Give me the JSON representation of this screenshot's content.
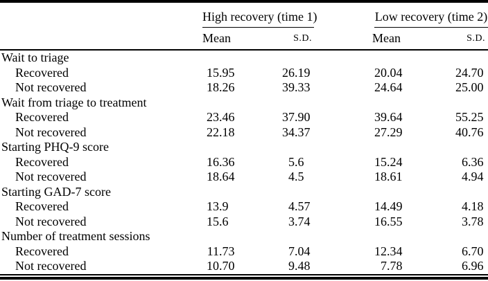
{
  "colors": {
    "rule": "#000000",
    "text": "#000000",
    "background": "#ffffff"
  },
  "table": {
    "col_groups": [
      {
        "label": "High recovery (time 1)"
      },
      {
        "label": "Low recovery (time 2)"
      }
    ],
    "sub_headers": {
      "mean": "Mean",
      "sd": "S.D."
    },
    "sections": [
      {
        "label": "Wait to triage",
        "rows": [
          {
            "label": "Recovered",
            "values": [
              "15.95",
              "26.19",
              "20.04",
              "24.70"
            ]
          },
          {
            "label": "Not recovered",
            "values": [
              "18.26",
              "39.33",
              "24.64",
              "25.00"
            ]
          }
        ]
      },
      {
        "label": "Wait from triage to treatment",
        "rows": [
          {
            "label": "Recovered",
            "values": [
              "23.46",
              "37.90",
              "39.64",
              "55.25"
            ]
          },
          {
            "label": "Not recovered",
            "values": [
              "22.18",
              "34.37",
              "27.29",
              "40.76"
            ]
          }
        ]
      },
      {
        "label": "Starting PHQ-9 score",
        "rows": [
          {
            "label": "Recovered",
            "values": [
              "16.36",
              "5.6",
              "15.24",
              "6.36"
            ]
          },
          {
            "label": "Not recovered",
            "values": [
              "18.64",
              "4.5",
              "18.61",
              "4.94"
            ]
          }
        ]
      },
      {
        "label": "Starting GAD-7 score",
        "rows": [
          {
            "label": "Recovered",
            "values": [
              "13.9",
              "4.57",
              "14.49",
              "4.18"
            ]
          },
          {
            "label": "Not recovered",
            "values": [
              "15.6",
              "3.74",
              "16.55",
              "3.78"
            ]
          }
        ]
      },
      {
        "label": "Number of treatment sessions",
        "rows": [
          {
            "label": "Recovered",
            "values": [
              "11.73",
              "7.04",
              "12.34",
              "6.70"
            ]
          },
          {
            "label": "Not recovered",
            "values": [
              "10.70",
              "9.48",
              "7.78",
              "6.96"
            ]
          }
        ]
      }
    ]
  }
}
